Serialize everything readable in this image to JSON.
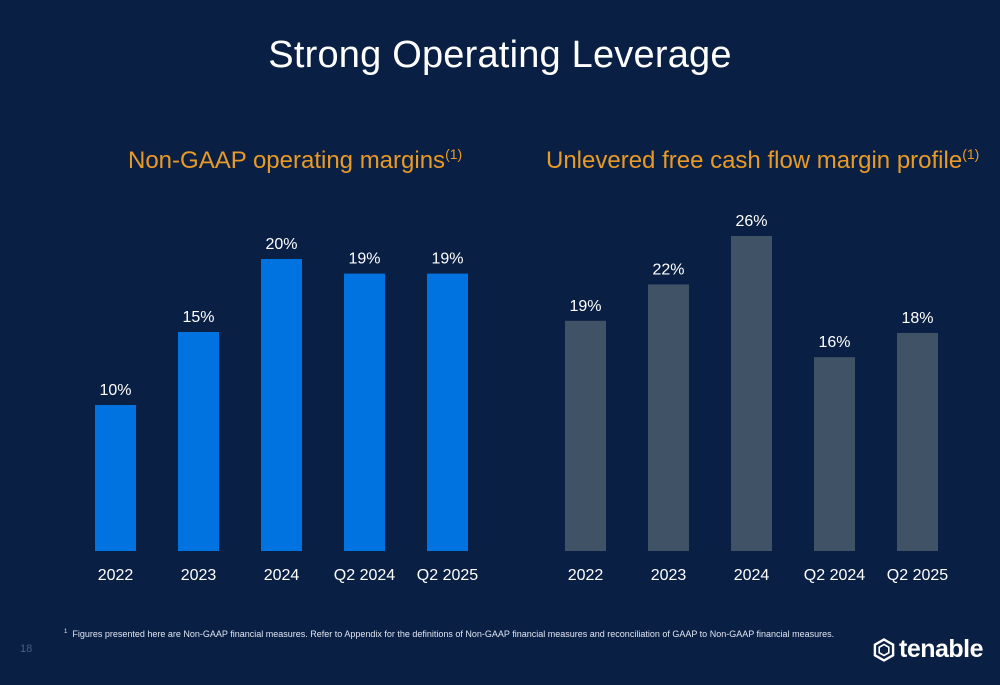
{
  "slide": {
    "title": "Strong Operating Leverage",
    "page_number": "18",
    "footnote_marker": "1",
    "footnote": "Figures presented here are Non-GAAP financial measures. Refer to Appendix for the definitions of Non-GAAP financial measures and reconciliation of GAAP to Non-GAAP financial measures.",
    "logo_text": "tenable"
  },
  "chart_data": [
    {
      "type": "bar",
      "title": "Non-GAAP operating margins",
      "title_superscript": "(1)",
      "categories": [
        "2022",
        "2023",
        "2024",
        "Q2 2024",
        "Q2 2025"
      ],
      "values": [
        10,
        15,
        20,
        19,
        19
      ],
      "value_labels": [
        "10%",
        "15%",
        "20%",
        "19%",
        "19%"
      ],
      "ylim": [
        0,
        20
      ],
      "grid": false,
      "color": "#0073e0"
    },
    {
      "type": "bar",
      "title": "Unlevered free cash flow margin profile",
      "title_superscript": "(1)",
      "categories": [
        "2022",
        "2023",
        "2024",
        "Q2 2024",
        "Q2 2025"
      ],
      "values": [
        19,
        22,
        26,
        16,
        18
      ],
      "value_labels": [
        "19%",
        "22%",
        "26%",
        "16%",
        "18%"
      ],
      "ylim": [
        0,
        26
      ],
      "grid": false,
      "color": "#405366"
    }
  ]
}
